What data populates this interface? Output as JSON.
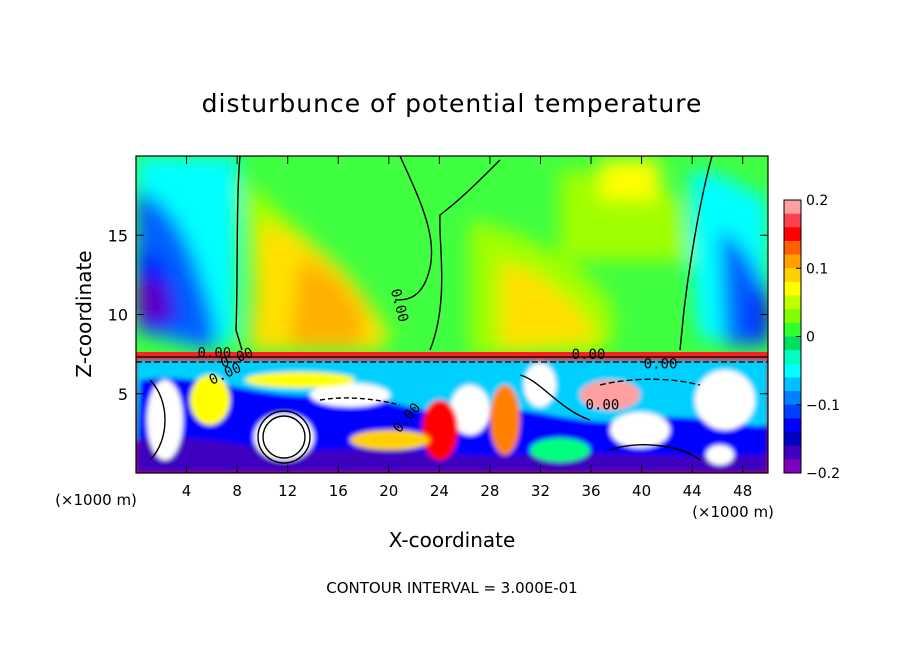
{
  "chart_data": {
    "type": "heatmap",
    "title": "disturbunce of potential temperature",
    "xlabel": "X-coordinate",
    "ylabel": "Z-coordinate",
    "x_unit": "(×1000 m)",
    "x_unit_right": "(×1000 m)",
    "xlim": [
      0,
      50
    ],
    "ylim": [
      0,
      20
    ],
    "x_ticks": [
      4,
      8,
      12,
      16,
      20,
      24,
      28,
      32,
      36,
      40,
      44,
      48
    ],
    "y_ticks": [
      5,
      10,
      15
    ],
    "colorbar": {
      "range": [
        -0.2,
        0.2
      ],
      "tick_values": [
        0.2,
        0.1,
        0,
        -0.1,
        -0.2
      ],
      "tick_labels": [
        "0.2",
        "0.1",
        "0",
        "−0.1",
        "−0.2"
      ],
      "colors": [
        "#ffa0a0",
        "#ff4050",
        "#ff0000",
        "#ff6000",
        "#ffa000",
        "#ffd000",
        "#ffff00",
        "#c0ff00",
        "#80ff00",
        "#30ff30",
        "#00e060",
        "#00ffc0",
        "#00ffff",
        "#00c0ff",
        "#0080ff",
        "#0040ff",
        "#0000ff",
        "#0000c0",
        "#4000c0",
        "#8000c0"
      ]
    },
    "contour_labels": [
      {
        "text": "0.00",
        "x": 20.5,
        "z": 10.5,
        "angle": 75
      },
      {
        "text": "0.00",
        "x": 6.2,
        "z": 7.3,
        "angle": 0
      },
      {
        "text": "0.00",
        "x": 8.1,
        "z": 7.0,
        "angle": -20
      },
      {
        "text": "0.00",
        "x": 7.2,
        "z": 6.0,
        "angle": -25
      },
      {
        "text": "0.00",
        "x": 35.8,
        "z": 7.2,
        "angle": 0
      },
      {
        "text": "0.00",
        "x": 41.5,
        "z": 6.6,
        "angle": 0
      },
      {
        "text": "0.00",
        "x": 36.9,
        "z": 4.0,
        "angle": 0
      },
      {
        "text": "0.00",
        "x": 21.7,
        "z": 3.3,
        "angle": -50
      }
    ],
    "footnote": "CONTOUR INTERVAL = 3.000E-01"
  }
}
